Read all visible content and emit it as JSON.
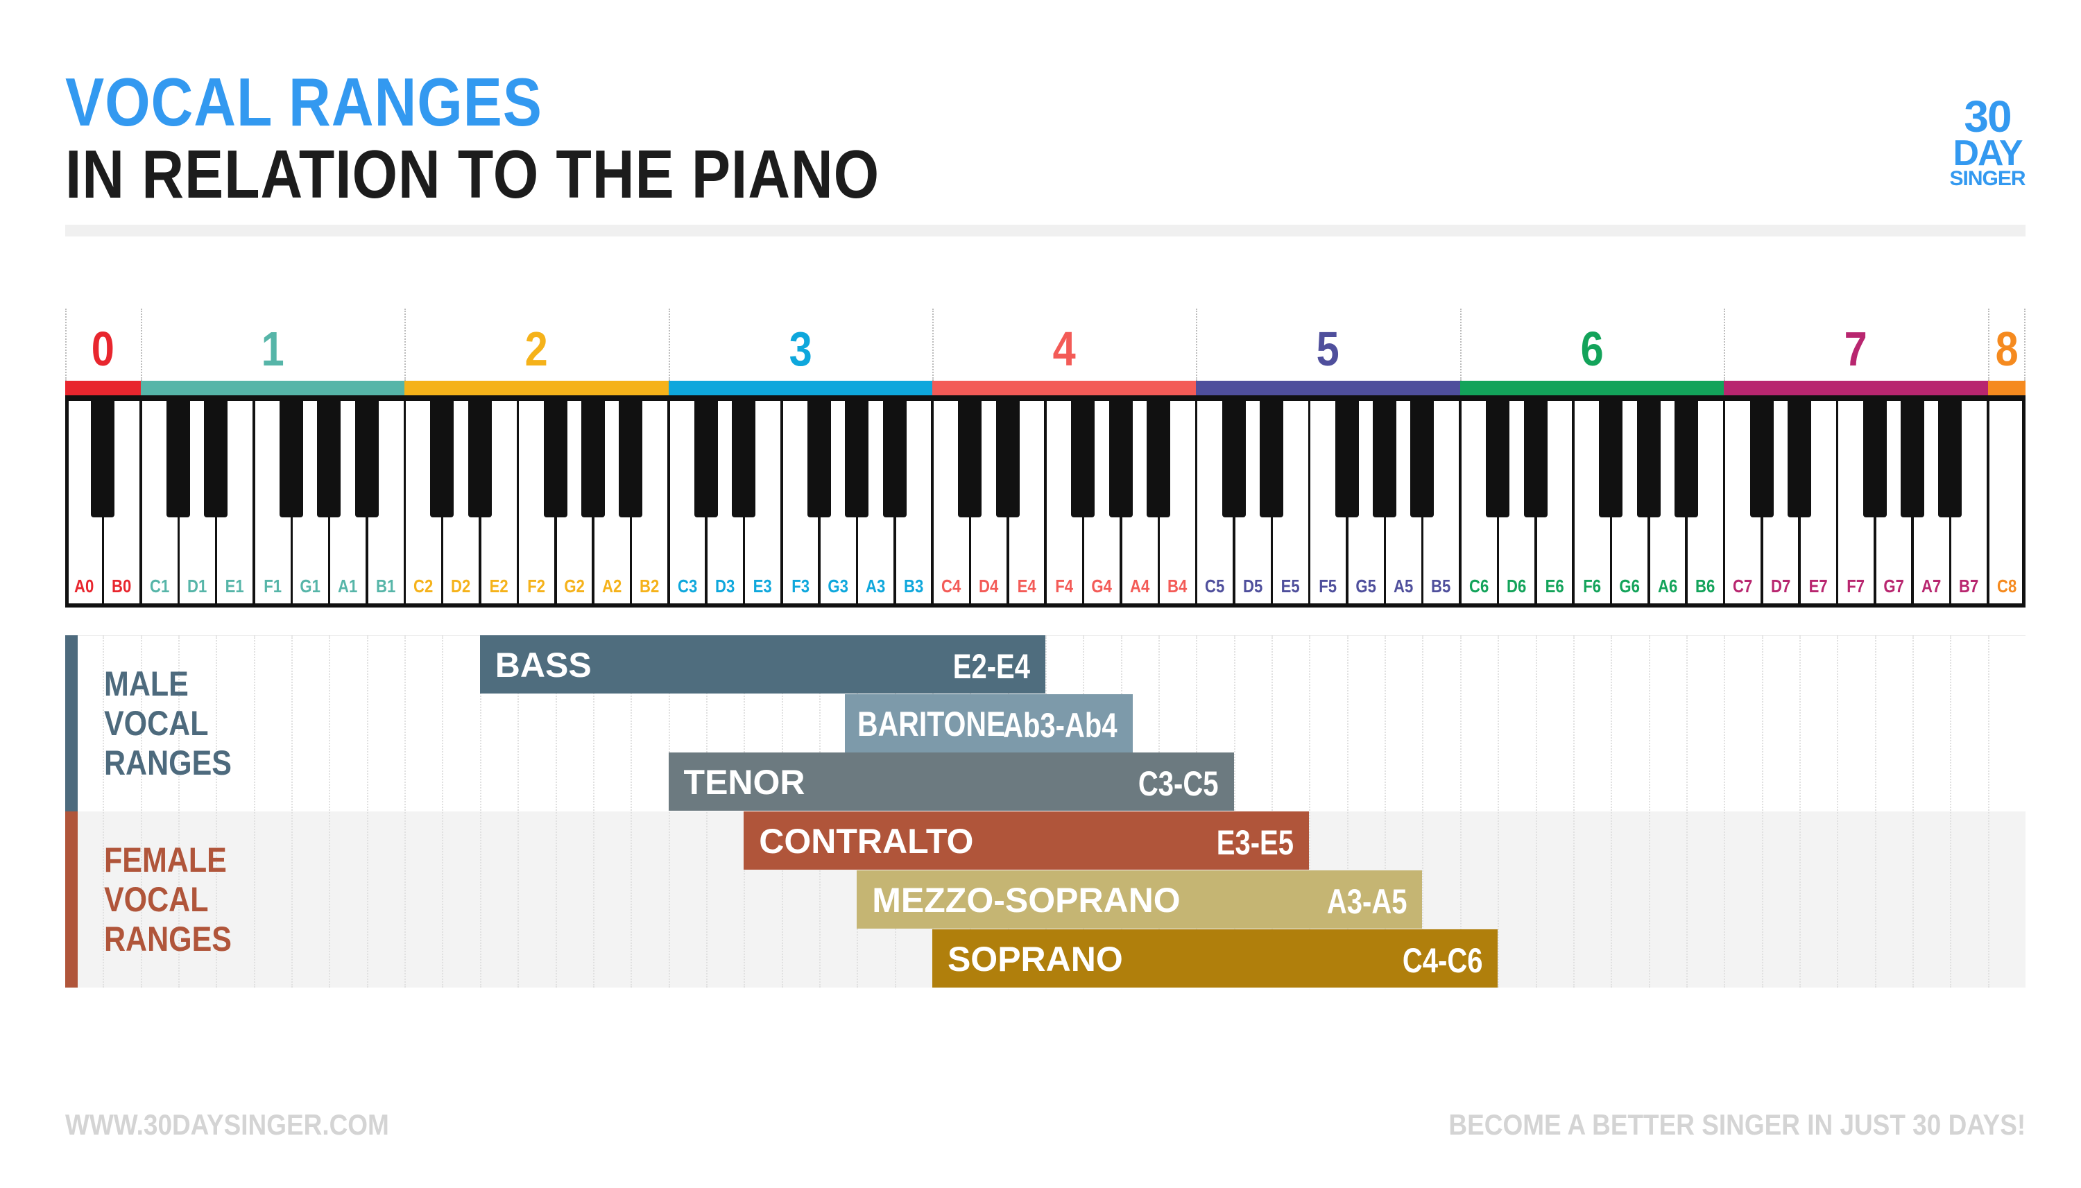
{
  "header": {
    "title_line1": "VOCAL RANGES",
    "title_line2": "IN RELATION TO THE PIANO"
  },
  "logo": {
    "line1": "30",
    "line2": "DAY",
    "line3": "SINGER"
  },
  "octaves": [
    {
      "label": "0",
      "color": "#e8262e"
    },
    {
      "label": "1",
      "color": "#56b5a8"
    },
    {
      "label": "2",
      "color": "#f5b21a"
    },
    {
      "label": "3",
      "color": "#0ea7dc"
    },
    {
      "label": "4",
      "color": "#f35b57"
    },
    {
      "label": "5",
      "color": "#4f4f9c"
    },
    {
      "label": "6",
      "color": "#13a35a"
    },
    {
      "label": "7",
      "color": "#b8266f"
    },
    {
      "label": "8",
      "color": "#f58a1f"
    }
  ],
  "white_keys": [
    "A0",
    "B0",
    "C1",
    "D1",
    "E1",
    "F1",
    "G1",
    "A1",
    "B1",
    "C2",
    "D2",
    "E2",
    "F2",
    "G2",
    "A2",
    "B2",
    "C3",
    "D3",
    "E3",
    "F3",
    "G3",
    "A3",
    "B3",
    "C4",
    "D4",
    "E4",
    "F4",
    "G4",
    "A4",
    "B4",
    "C5",
    "D5",
    "E5",
    "F5",
    "G5",
    "A5",
    "B5",
    "C6",
    "D6",
    "E6",
    "F6",
    "G6",
    "A6",
    "B6",
    "C7",
    "D7",
    "E7",
    "F7",
    "G7",
    "A7",
    "B7",
    "C8"
  ],
  "groups": {
    "male": {
      "line1": "MALE",
      "line2": "VOCAL",
      "line3": "RANGES"
    },
    "female": {
      "line1": "FEMALE",
      "line2": "VOCAL",
      "line3": "RANGES"
    }
  },
  "ranges": [
    {
      "name": "BASS",
      "range": "E2-E4",
      "low": "E2",
      "high": "E4",
      "color": "#4f6d7e",
      "row": 0
    },
    {
      "name": "BARITONE",
      "range": "Ab3-Ab4",
      "low": "Ab3",
      "high": "Ab4",
      "color": "#7d9aaa",
      "row": 1
    },
    {
      "name": "TENOR",
      "range": "C3-C5",
      "low": "C3",
      "high": "C5",
      "color": "#6c7a80",
      "row": 2
    },
    {
      "name": "CONTRALTO",
      "range": "E3-E5",
      "low": "E3",
      "high": "E5",
      "color": "#b0553a",
      "row": 3
    },
    {
      "name": "MEZZO-SOPRANO",
      "range": "A3-A5",
      "low": "A3",
      "high": "A5",
      "color": "#c5b573",
      "row": 4
    },
    {
      "name": "SOPRANO",
      "range": "C4-C6",
      "low": "C4",
      "high": "C6",
      "color": "#b07f0c",
      "row": 5
    }
  ],
  "footer": {
    "left": "WWW.30DAYSINGER.COM",
    "right": "BECOME A BETTER SINGER IN JUST 30 DAYS!"
  }
}
